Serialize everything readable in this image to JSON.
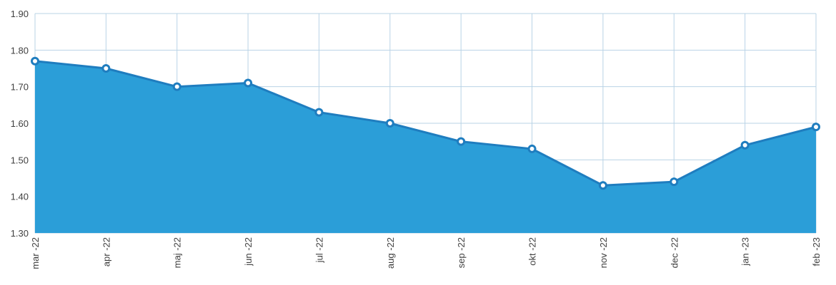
{
  "chart_data": {
    "type": "area",
    "title": "",
    "xlabel": "",
    "ylabel": "",
    "categories": [
      "mar -22",
      "apr -22",
      "maj -22",
      "jun -22",
      "jul -22",
      "aug -22",
      "sep -22",
      "okt -22",
      "nov -22",
      "dec -22",
      "jan -23",
      "feb -23"
    ],
    "series": [
      {
        "values": [
          1.77,
          1.75,
          1.7,
          1.71,
          1.63,
          1.6,
          1.55,
          1.53,
          1.43,
          1.44,
          1.54,
          1.59
        ]
      }
    ],
    "ylim": [
      1.3,
      1.9
    ],
    "yticks": [
      "1.90",
      "1.80",
      "1.70",
      "1.60",
      "1.50",
      "1.40",
      "1.30"
    ],
    "grid": true,
    "legend": "none",
    "colors": {
      "area_fill": "#2b9ed8",
      "line": "#1f7dbf",
      "marker_stroke": "#1f7dbf",
      "marker_fill": "#ffffff",
      "grid": "#b9d3e6",
      "text": "#3f3f3f"
    }
  }
}
